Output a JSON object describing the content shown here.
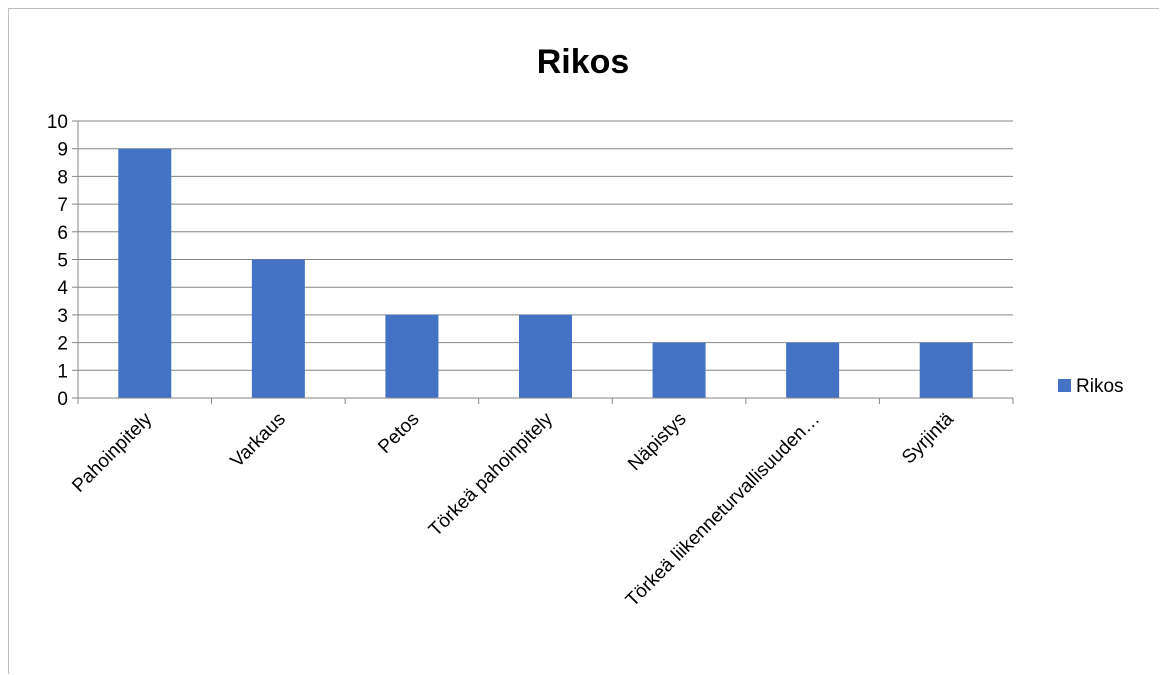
{
  "chart_data": {
    "type": "bar",
    "title": "Rikos",
    "categories": [
      "Pahoinpitely",
      "Varkaus",
      "Petos",
      "Törkeä pahoinpitely",
      "Näpistys",
      "Törkeä liikenneturvallisuuden…",
      "Syrjintä"
    ],
    "series": [
      {
        "name": "Rikos",
        "values": [
          9,
          5,
          3,
          3,
          2,
          2,
          2
        ],
        "color": "#4472c4"
      }
    ],
    "ylim": [
      0,
      10
    ],
    "yticks": [
      "0",
      "1",
      "2",
      "3",
      "4",
      "5",
      "6",
      "7",
      "8",
      "9",
      "10"
    ],
    "xlabel": "",
    "ylabel": "",
    "grid": true,
    "legend_position": "right"
  }
}
